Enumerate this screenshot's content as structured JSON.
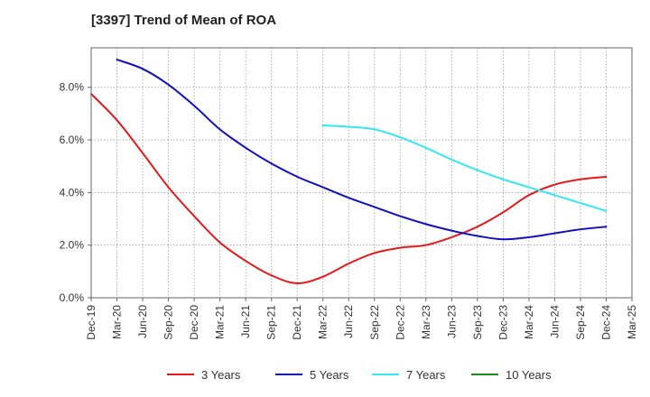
{
  "chart_data": {
    "type": "line",
    "title": "[3397]  Trend of Mean of ROA",
    "xlabel": "",
    "ylabel": "",
    "x": [
      "Dec-19",
      "Mar-20",
      "Jun-20",
      "Sep-20",
      "Dec-20",
      "Mar-21",
      "Jun-21",
      "Sep-21",
      "Dec-21",
      "Mar-22",
      "Jun-22",
      "Sep-22",
      "Dec-22",
      "Mar-23",
      "Jun-23",
      "Sep-23",
      "Dec-23",
      "Mar-24",
      "Jun-24",
      "Sep-24",
      "Dec-24",
      "Mar-25"
    ],
    "ylim": [
      0,
      9.5
    ],
    "yticks": [
      0,
      2,
      4,
      6,
      8
    ],
    "ytick_labels": [
      "0.0%",
      "2.0%",
      "4.0%",
      "6.0%",
      "8.0%"
    ],
    "grid": true,
    "legend_position": "bottom",
    "series": [
      {
        "name": "3 Years",
        "color": "#e31a1c",
        "values": [
          7.75,
          6.75,
          5.5,
          4.2,
          3.1,
          2.1,
          1.4,
          0.85,
          0.55,
          0.8,
          1.3,
          1.7,
          1.9,
          2.0,
          2.3,
          2.7,
          3.25,
          3.9,
          4.3,
          4.5,
          4.6,
          null
        ]
      },
      {
        "name": "5 Years",
        "color": "#1010c0",
        "values": [
          null,
          9.05,
          8.7,
          8.1,
          7.3,
          6.4,
          5.7,
          5.1,
          4.6,
          4.2,
          3.8,
          3.45,
          3.1,
          2.8,
          2.55,
          2.35,
          2.22,
          2.3,
          2.45,
          2.6,
          2.7,
          null
        ]
      },
      {
        "name": "7 Years",
        "color": "#33e8f0",
        "values": [
          null,
          null,
          null,
          null,
          null,
          null,
          null,
          null,
          null,
          6.55,
          6.5,
          6.4,
          6.1,
          5.7,
          5.25,
          4.85,
          4.5,
          4.2,
          3.9,
          3.6,
          3.3,
          null
        ]
      },
      {
        "name": "10 Years",
        "color": "#1a8a1a",
        "values": [
          null,
          null,
          null,
          null,
          null,
          null,
          null,
          null,
          null,
          null,
          null,
          null,
          null,
          null,
          null,
          null,
          null,
          null,
          null,
          null,
          null,
          null
        ]
      }
    ]
  }
}
